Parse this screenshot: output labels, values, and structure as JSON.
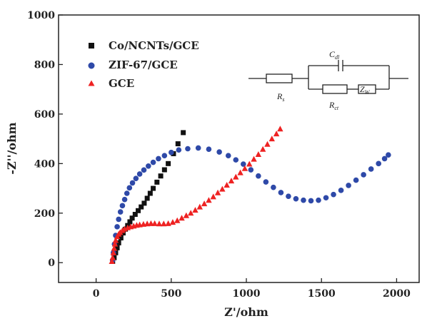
{
  "chart_data": {
    "type": "scatter",
    "title": "",
    "xlabel": "Z'/ohm",
    "ylabel": "-Z''/ohm",
    "xlim": [
      -250,
      2150
    ],
    "ylim": [
      -80,
      1000
    ],
    "x_ticks": [
      0,
      500,
      1000,
      1500,
      2000
    ],
    "y_ticks": [
      0,
      200,
      400,
      600,
      800,
      1000
    ],
    "grid": false,
    "legend_position": "top-left",
    "series": [
      {
        "name": "Co/NCNTs/GCE",
        "marker": "square",
        "color": "#111111",
        "x": [
          110,
          120,
          130,
          140,
          150,
          165,
          180,
          195,
          210,
          225,
          240,
          260,
          280,
          300,
          320,
          340,
          360,
          380,
          405,
          430,
          455,
          480,
          515,
          545,
          580
        ],
        "y": [
          5,
          20,
          40,
          60,
          80,
          100,
          120,
          135,
          150,
          165,
          180,
          195,
          210,
          225,
          240,
          260,
          280,
          300,
          325,
          350,
          375,
          400,
          440,
          480,
          525
        ]
      },
      {
        "name": "ZIF-67/GCE",
        "marker": "circle",
        "color": "#2e49a8",
        "x": [
          110,
          115,
          122,
          130,
          140,
          150,
          162,
          175,
          190,
          205,
          222,
          242,
          265,
          290,
          318,
          348,
          380,
          415,
          455,
          500,
          550,
          610,
          680,
          750,
          820,
          880,
          930,
          980,
          1030,
          1080,
          1130,
          1180,
          1230,
          1280,
          1330,
          1380,
          1430,
          1480,
          1530,
          1580,
          1630,
          1680,
          1730,
          1780,
          1830,
          1880,
          1920,
          1945
        ],
        "y": [
          10,
          40,
          75,
          110,
          145,
          175,
          205,
          230,
          255,
          280,
          302,
          322,
          340,
          358,
          374,
          390,
          405,
          420,
          432,
          445,
          455,
          460,
          463,
          458,
          447,
          432,
          415,
          398,
          375,
          350,
          326,
          304,
          283,
          268,
          258,
          252,
          250,
          252,
          262,
          275,
          292,
          312,
          333,
          355,
          378,
          400,
          420,
          435
        ]
      },
      {
        "name": "GCE",
        "marker": "triangle",
        "color": "#ee2222",
        "x": [
          105,
          110,
          115,
          120,
          125,
          130,
          140,
          150,
          160,
          175,
          190,
          210,
          230,
          250,
          270,
          290,
          315,
          340,
          365,
          390,
          420,
          450,
          480,
          510,
          540,
          570,
          600,
          630,
          660,
          690,
          720,
          750,
          780,
          810,
          840,
          870,
          900,
          930,
          960,
          990,
          1020,
          1050,
          1080,
          1110,
          1140,
          1170,
          1200,
          1225
        ],
        "y": [
          5,
          20,
          40,
          58,
          75,
          90,
          105,
          115,
          122,
          130,
          136,
          141,
          145,
          148,
          151,
          153,
          155,
          157,
          158,
          158,
          157,
          157,
          158,
          163,
          170,
          180,
          190,
          200,
          212,
          225,
          238,
          252,
          266,
          282,
          297,
          313,
          330,
          346,
          363,
          380,
          398,
          418,
          437,
          458,
          478,
          500,
          520,
          540
        ]
      }
    ]
  },
  "circuit": {
    "labels": {
      "rs_main": "R",
      "rs_sub": "s",
      "cdl_main": "C",
      "cdl_sub": "dl",
      "rct_main": "R",
      "rct_sub": "ct",
      "zw_main": "Z",
      "zw_sub": "W"
    }
  }
}
